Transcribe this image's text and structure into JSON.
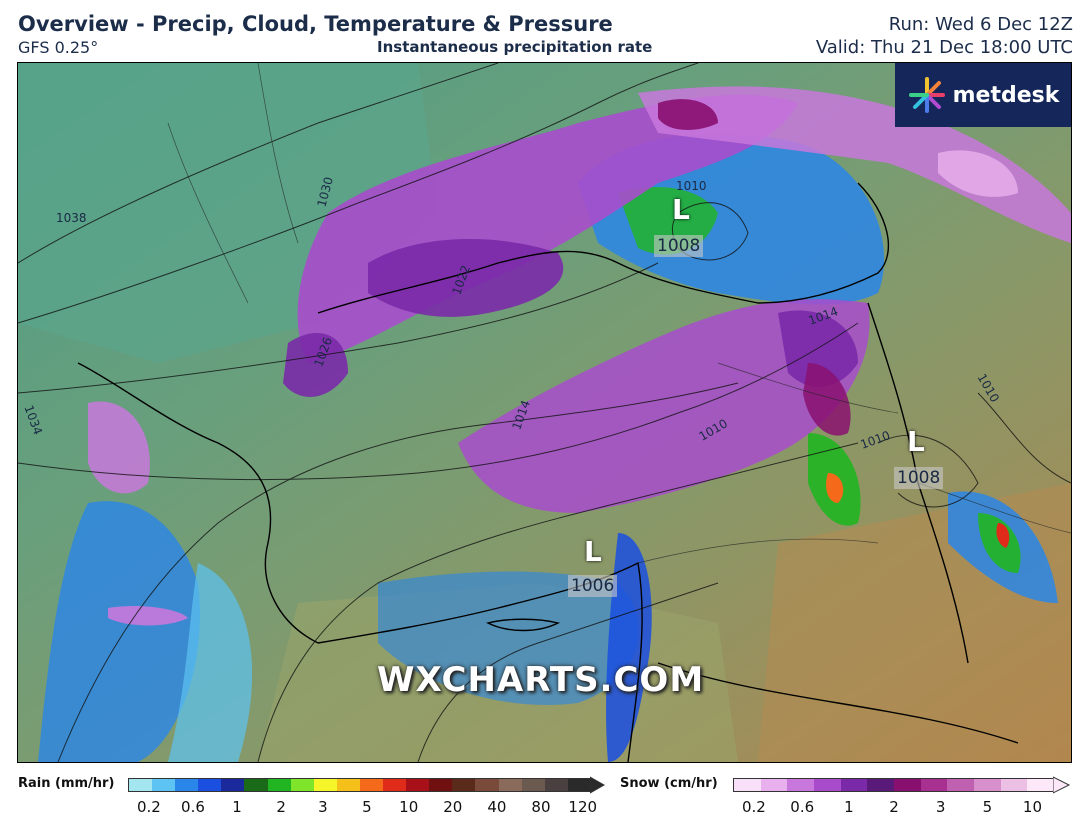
{
  "header": {
    "title": "Overview - Precip, Cloud, Temperature & Pressure",
    "model": "GFS 0.25°",
    "subtitle": "Instantaneous precipitation rate",
    "run": "Run: Wed 6 Dec 12Z",
    "valid": "Valid: Thu 21 Dec 18:00 UTC"
  },
  "branding": {
    "logo_text": "metdesk",
    "watermark": "WXCHARTS.COM"
  },
  "map": {
    "pressure_centres": [
      {
        "symbol": "L",
        "value": "1008"
      },
      {
        "symbol": "L",
        "value": "1008"
      },
      {
        "symbol": "L",
        "value": "1006"
      }
    ],
    "isobar_labels": [
      "1038",
      "1030",
      "1034",
      "1026",
      "1022",
      "1014",
      "1010",
      "1014",
      "1010",
      "1010",
      "1010"
    ]
  },
  "legend": {
    "rain": {
      "label": "Rain (mm/hr)",
      "colors": [
        "#a4e6f0",
        "#5cc3f2",
        "#2a86e8",
        "#1a4fe0",
        "#1a2a9c",
        "#1a6a1a",
        "#21b521",
        "#7fe52a",
        "#f5f52a",
        "#f5c01a",
        "#f56a1a",
        "#e02a1a",
        "#a8101a",
        "#701010",
        "#5a2a1a",
        "#7a4a3a",
        "#8a6a5a",
        "#6a5a50",
        "#4a4040",
        "#2a2a2a"
      ],
      "ticks": [
        "0.2",
        "0.6",
        "1",
        "2",
        "3",
        "5",
        "10",
        "20",
        "40",
        "80",
        "120"
      ]
    },
    "snow": {
      "label": "Snow (cm/hr)",
      "colors": [
        "#f8e0f8",
        "#e8b0ec",
        "#c878dc",
        "#a84ccc",
        "#7a2aa8",
        "#5a1a7a",
        "#8a1070",
        "#a83090",
        "#c060b0",
        "#d890cc",
        "#ecc0e4",
        "#fce8f8"
      ],
      "ticks": [
        "0.2",
        "0.6",
        "1",
        "2",
        "3",
        "5",
        "10"
      ]
    }
  }
}
